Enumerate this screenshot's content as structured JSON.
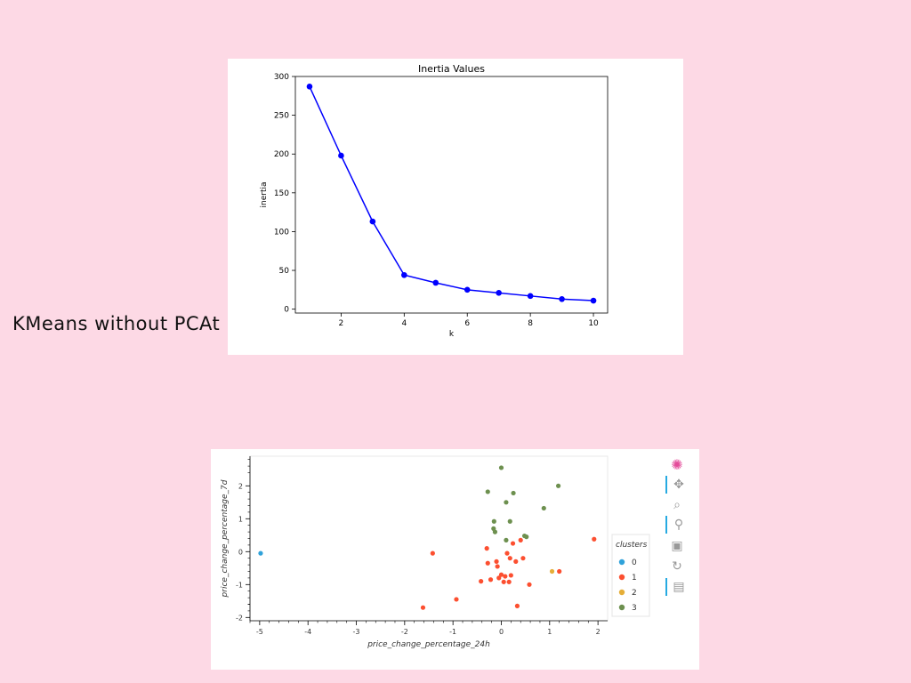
{
  "side_caption": "KMeans without PCAt",
  "chart_data": [
    {
      "type": "line",
      "title": "Inertia Values",
      "xlabel": "k",
      "ylabel": "inertia",
      "x": [
        1,
        2,
        3,
        4,
        5,
        6,
        7,
        8,
        9,
        10
      ],
      "y": [
        287,
        198,
        113,
        44,
        34,
        25,
        21,
        17,
        13,
        11
      ],
      "xlim": [
        0.55,
        10.45
      ],
      "ylim": [
        -5,
        300
      ],
      "xticks": [
        2,
        4,
        6,
        8,
        10
      ],
      "yticks": [
        0,
        50,
        100,
        150,
        200,
        250,
        300
      ],
      "color": "#0000ff",
      "marker": "circle",
      "grid": false
    },
    {
      "type": "scatter",
      "xlabel": "price_change_percentage_24h",
      "ylabel": "price_change_percentage_7d",
      "xlim": [
        -5.2,
        2.2
      ],
      "ylim": [
        -2.1,
        2.9
      ],
      "xticks": [
        -5,
        -4,
        -3,
        -2,
        -1,
        0,
        1,
        2
      ],
      "yticks": [
        -2,
        -1,
        0,
        1,
        2
      ],
      "legend_title": "clusters",
      "legend_position": "right",
      "grid": false,
      "series": [
        {
          "name": "0",
          "color": "#30a2da",
          "points": [
            [
              -4.98,
              -0.05
            ]
          ]
        },
        {
          "name": "1",
          "color": "#fc4f30",
          "points": [
            [
              -1.62,
              -1.7
            ],
            [
              -1.42,
              -0.05
            ],
            [
              -0.93,
              -1.45
            ],
            [
              -0.42,
              -0.9
            ],
            [
              -0.3,
              0.1
            ],
            [
              -0.28,
              -0.35
            ],
            [
              -0.22,
              -0.85
            ],
            [
              -0.1,
              -0.3
            ],
            [
              -0.08,
              -0.45
            ],
            [
              -0.05,
              -0.8
            ],
            [
              0.0,
              -0.7
            ],
            [
              0.05,
              -0.92
            ],
            [
              0.08,
              -0.75
            ],
            [
              0.12,
              -0.05
            ],
            [
              0.16,
              -0.92
            ],
            [
              0.18,
              -0.2
            ],
            [
              0.2,
              -0.72
            ],
            [
              0.24,
              0.25
            ],
            [
              0.3,
              -0.3
            ],
            [
              0.33,
              -1.65
            ],
            [
              0.4,
              0.35
            ],
            [
              0.45,
              -0.2
            ],
            [
              0.58,
              -1.0
            ],
            [
              1.2,
              -0.6
            ],
            [
              1.92,
              0.38
            ]
          ]
        },
        {
          "name": "2",
          "color": "#e5ae38",
          "points": [
            [
              1.05,
              -0.6
            ]
          ]
        },
        {
          "name": "3",
          "color": "#6d904f",
          "points": [
            [
              0.0,
              2.55
            ],
            [
              -0.28,
              1.82
            ],
            [
              0.25,
              1.78
            ],
            [
              1.18,
              2.0
            ],
            [
              0.1,
              1.5
            ],
            [
              0.88,
              1.32
            ],
            [
              -0.15,
              0.92
            ],
            [
              0.18,
              0.92
            ],
            [
              -0.16,
              0.7
            ],
            [
              -0.13,
              0.6
            ],
            [
              0.48,
              0.48
            ],
            [
              0.52,
              0.45
            ],
            [
              0.1,
              0.35
            ]
          ]
        }
      ]
    }
  ],
  "toolbar": {
    "items": [
      {
        "icon": "bokeh-logo-icon",
        "glyph": "✺",
        "active": false
      },
      {
        "icon": "pan-icon",
        "glyph": "✥",
        "active": true
      },
      {
        "icon": "box-zoom-icon",
        "glyph": "⌕",
        "active": false
      },
      {
        "icon": "wheel-zoom-icon",
        "glyph": "⚲",
        "active": true
      },
      {
        "icon": "save-icon",
        "glyph": "▣",
        "active": false
      },
      {
        "icon": "reset-icon",
        "glyph": "↻",
        "active": false
      },
      {
        "icon": "hover-icon",
        "glyph": "▤",
        "active": true
      }
    ]
  }
}
